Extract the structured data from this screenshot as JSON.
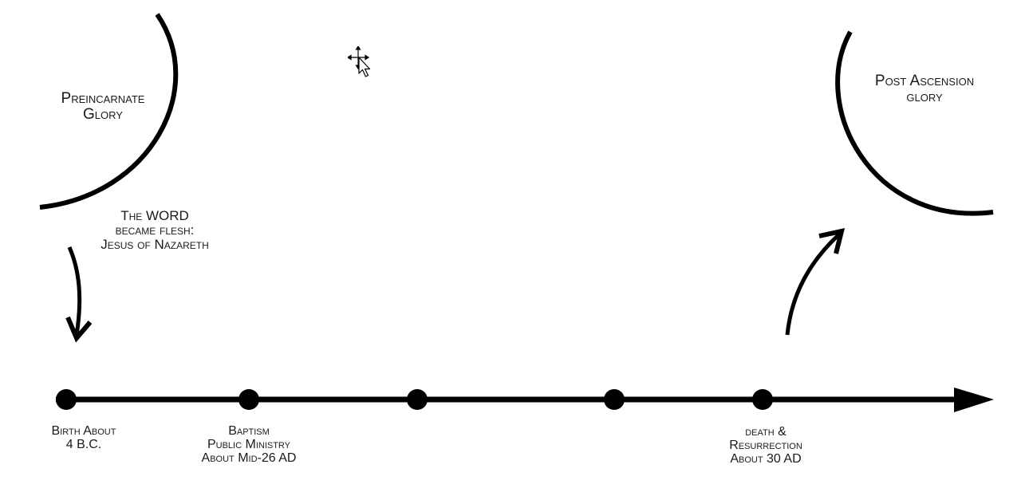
{
  "diagram": {
    "preincarnate_label": [
      "Preincarnate",
      "Glory"
    ],
    "post_ascension_label": [
      "Post Ascension",
      "glory"
    ],
    "incarnation_label": [
      "The WORD",
      "became flesh:",
      "Jesus of Nazareth"
    ],
    "timeline_points": [
      {
        "name": "birth",
        "label": [
          "Birth About",
          "4 B.C."
        ]
      },
      {
        "name": "baptism",
        "label": [
          "Baptism",
          "Public Ministry",
          "About Mid-26 AD"
        ]
      },
      {
        "name": "point-3",
        "label": []
      },
      {
        "name": "point-4",
        "label": []
      },
      {
        "name": "death-resurrection",
        "label": [
          "death &",
          "Resurrection",
          "About 30 AD"
        ]
      }
    ],
    "colors": {
      "ink": "#000000",
      "background": "#ffffff"
    }
  },
  "overlay": {
    "cursor_icon": "move-cursor-icon"
  }
}
